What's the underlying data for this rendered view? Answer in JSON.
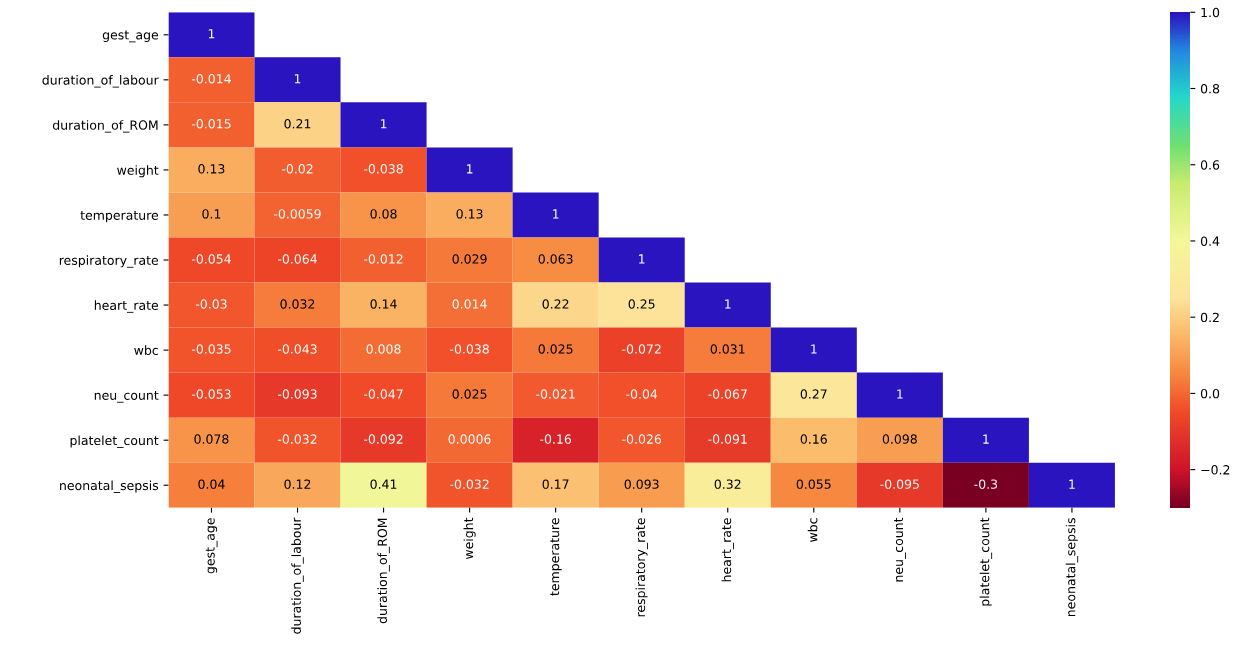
{
  "chart_data": {
    "type": "heatmap",
    "categories": [
      "gest_age",
      "duration_of_labour",
      "duration_of_ROM",
      "weight",
      "temperature",
      "respiratory_rate",
      "heart_rate",
      "wbc",
      "neu_count",
      "platelet_count",
      "neonatal_sepsis"
    ],
    "y_categories": [
      "gest_age",
      "duration_of_labour",
      "duration_of_ROM",
      "weight",
      "temperature",
      "respiratory_rate",
      "heart_rate",
      "wbc",
      "neu_count",
      "platelet_count",
      "neonatal_sepsis"
    ],
    "cells": [
      [
        1,
        null,
        null,
        null,
        null,
        null,
        null,
        null,
        null,
        null,
        null
      ],
      [
        -0.014,
        1,
        null,
        null,
        null,
        null,
        null,
        null,
        null,
        null,
        null
      ],
      [
        -0.015,
        0.21,
        1,
        null,
        null,
        null,
        null,
        null,
        null,
        null,
        null
      ],
      [
        0.13,
        -0.02,
        -0.038,
        1,
        null,
        null,
        null,
        null,
        null,
        null,
        null
      ],
      [
        0.1,
        -0.0059,
        0.08,
        0.13,
        1,
        null,
        null,
        null,
        null,
        null,
        null
      ],
      [
        -0.054,
        -0.064,
        -0.012,
        0.029,
        0.063,
        1,
        null,
        null,
        null,
        null,
        null
      ],
      [
        -0.03,
        0.032,
        0.14,
        0.014,
        0.22,
        0.25,
        1,
        null,
        null,
        null,
        null
      ],
      [
        -0.035,
        -0.043,
        0.008,
        -0.038,
        0.025,
        -0.072,
        0.031,
        1,
        null,
        null,
        null
      ],
      [
        -0.053,
        -0.093,
        -0.047,
        0.025,
        -0.021,
        -0.04,
        -0.067,
        0.27,
        1,
        null,
        null
      ],
      [
        0.078,
        -0.032,
        -0.092,
        0.0006,
        -0.16,
        -0.026,
        -0.091,
        0.16,
        0.098,
        1,
        null
      ],
      [
        0.04,
        0.12,
        0.41,
        -0.032,
        0.17,
        0.093,
        0.32,
        0.055,
        -0.095,
        -0.3,
        1
      ]
    ],
    "clim": [
      -0.3,
      1
    ],
    "cticks": [
      {
        "value": -0.2,
        "label": "−0.2"
      },
      {
        "value": 0,
        "label": "0.0"
      },
      {
        "value": 0.2,
        "label": "0.2"
      },
      {
        "value": 0.4,
        "label": "0.4"
      },
      {
        "value": 0.6,
        "label": "0.6"
      },
      {
        "value": 0.8,
        "label": "0.8"
      },
      {
        "value": 1,
        "label": "1.0"
      }
    ],
    "data_labels": true
  }
}
